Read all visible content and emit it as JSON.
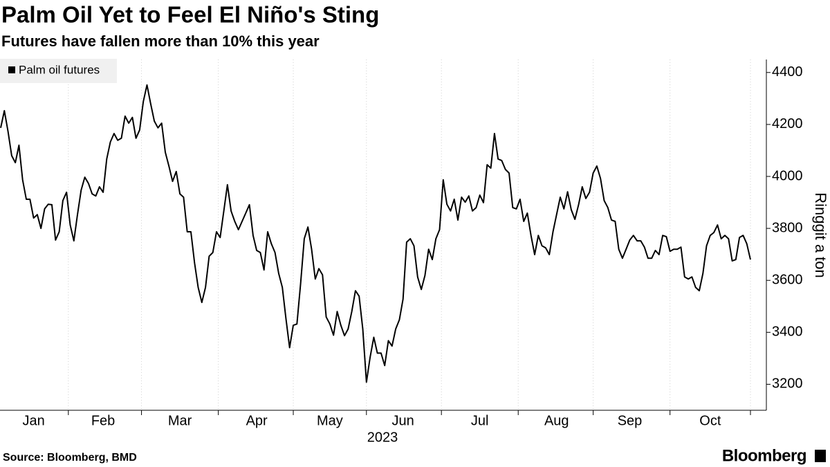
{
  "chart_data": {
    "type": "line",
    "title": "Palm Oil Yet to Feel El Niño's Sting",
    "subtitle": "Futures have fallen more than 10% this year",
    "ylabel": "Ringgit a ton",
    "xlabel": "2023",
    "source": "Source: Bloomberg, BMD",
    "brand": "Bloomberg",
    "categories": [
      null,
      null,
      null,
      null,
      null,
      null,
      null,
      null,
      null,
      "Jan",
      null,
      null,
      null,
      null,
      null,
      null,
      null,
      null,
      null,
      null,
      null,
      null,
      null,
      null,
      null,
      null,
      null,
      null,
      "Feb",
      null,
      null,
      null,
      null,
      null,
      null,
      null,
      null,
      null,
      null,
      null,
      null,
      null,
      null,
      null,
      null,
      null,
      null,
      null,
      null,
      "Mar",
      null,
      null,
      null,
      null,
      null,
      null,
      null,
      null,
      null,
      null,
      null,
      null,
      null,
      null,
      null,
      null,
      null,
      null,
      null,
      null,
      "Apr",
      null,
      null,
      null,
      null,
      null,
      null,
      null,
      null,
      null,
      null,
      null,
      null,
      null,
      null,
      null,
      null,
      null,
      null,
      null,
      "May",
      null,
      null,
      null,
      null,
      null,
      null,
      null,
      null,
      null,
      null,
      null,
      null,
      null,
      null,
      null,
      null,
      null,
      null,
      null,
      "Jun",
      null,
      null,
      null,
      null,
      null,
      null,
      null,
      null,
      null,
      null,
      null,
      null,
      null,
      null,
      null,
      null,
      null,
      null,
      null,
      null,
      "Jul",
      null,
      null,
      null,
      null,
      null,
      null,
      null,
      null,
      null,
      null,
      null,
      null,
      null,
      null,
      null,
      null,
      null,
      null,
      null,
      null,
      "Aug",
      null,
      null,
      null,
      null,
      null,
      null,
      null,
      null,
      null,
      null,
      null,
      null,
      null,
      null,
      null,
      null,
      null,
      null,
      null,
      "Sep",
      null,
      null,
      null,
      null,
      null,
      null,
      null,
      null,
      null,
      null,
      null,
      null,
      null,
      null,
      null,
      null,
      null,
      null,
      null,
      null,
      null,
      "Oct",
      null,
      null,
      null,
      null,
      null,
      null,
      null,
      null,
      null,
      null,
      null
    ],
    "series": [
      {
        "name": "Palm oil futures",
        "color": "#000000",
        "values": [
          4187,
          4253,
          4173,
          4080,
          4053,
          4120,
          3987,
          3912,
          3912,
          3840,
          3853,
          3800,
          3875,
          3893,
          3891,
          3755,
          3787,
          3907,
          3939,
          3813,
          3752,
          3853,
          3947,
          3997,
          3973,
          3933,
          3925,
          3960,
          3939,
          4067,
          4133,
          4165,
          4139,
          4147,
          4232,
          4205,
          4227,
          4147,
          4179,
          4288,
          4352,
          4280,
          4213,
          4187,
          4205,
          4093,
          4040,
          3981,
          4019,
          3933,
          3920,
          3787,
          3787,
          3667,
          3573,
          3515,
          3573,
          3693,
          3707,
          3787,
          3765,
          3867,
          3968,
          3867,
          3827,
          3795,
          3827,
          3859,
          3891,
          3773,
          3715,
          3707,
          3640,
          3787,
          3741,
          3707,
          3627,
          3573,
          3453,
          3341,
          3427,
          3432,
          3587,
          3760,
          3805,
          3720,
          3605,
          3645,
          3621,
          3459,
          3432,
          3389,
          3480,
          3427,
          3387,
          3413,
          3480,
          3560,
          3539,
          3413,
          3208,
          3304,
          3381,
          3320,
          3320,
          3272,
          3368,
          3347,
          3413,
          3448,
          3528,
          3747,
          3760,
          3733,
          3613,
          3565,
          3619,
          3720,
          3680,
          3760,
          3795,
          3987,
          3893,
          3867,
          3912,
          3832,
          3920,
          3901,
          3925,
          3867,
          3880,
          3928,
          3899,
          4045,
          4032,
          4165,
          4067,
          4061,
          4027,
          4013,
          3880,
          3875,
          3912,
          3827,
          3859,
          3773,
          3699,
          3773,
          3733,
          3725,
          3699,
          3787,
          3853,
          3920,
          3875,
          3941,
          3872,
          3835,
          3891,
          3960,
          3915,
          3939,
          4013,
          4040,
          3992,
          3907,
          3880,
          3832,
          3827,
          3720,
          3685,
          3720,
          3755,
          3773,
          3752,
          3752,
          3728,
          3685,
          3685,
          3715,
          3699,
          3773,
          3768,
          3712,
          3720,
          3720,
          3728,
          3613,
          3605,
          3613,
          3573,
          3560,
          3627,
          3733,
          3773,
          3784,
          3813,
          3760,
          3773,
          3760,
          3675,
          3680,
          3765,
          3773,
          3741,
          3680
        ]
      }
    ],
    "ylim": [
      3100,
      4450
    ],
    "yticks": [
      3200,
      3400,
      3600,
      3800,
      4000,
      4200,
      4400
    ],
    "x_grid": true,
    "legend": "top-left"
  }
}
